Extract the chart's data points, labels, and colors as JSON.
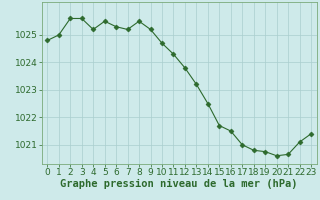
{
  "x": [
    0,
    1,
    2,
    3,
    4,
    5,
    6,
    7,
    8,
    9,
    10,
    11,
    12,
    13,
    14,
    15,
    16,
    17,
    18,
    19,
    20,
    21,
    22,
    23
  ],
  "y": [
    1024.8,
    1025.0,
    1025.6,
    1025.6,
    1025.2,
    1025.5,
    1025.3,
    1025.2,
    1025.5,
    1025.2,
    1024.7,
    1024.3,
    1023.8,
    1023.2,
    1022.5,
    1021.7,
    1021.5,
    1021.0,
    1020.8,
    1020.75,
    1020.6,
    1020.65,
    1021.1,
    1021.4
  ],
  "line_color": "#2d6a2d",
  "marker": "D",
  "marker_size": 2.5,
  "bg_color": "#ceeaea",
  "grid_color": "#aacece",
  "xlabel": "Graphe pression niveau de la mer (hPa)",
  "ylim": [
    1020.3,
    1026.2
  ],
  "yticks": [
    1021,
    1022,
    1023,
    1024,
    1025
  ],
  "xticks": [
    0,
    1,
    2,
    3,
    4,
    5,
    6,
    7,
    8,
    9,
    10,
    11,
    12,
    13,
    14,
    15,
    16,
    17,
    18,
    19,
    20,
    21,
    22,
    23
  ],
  "tick_color": "#2d6a2d",
  "xlabel_fontsize": 7.5,
  "tick_fontsize": 6.5,
  "spine_color": "#7aaa7a"
}
